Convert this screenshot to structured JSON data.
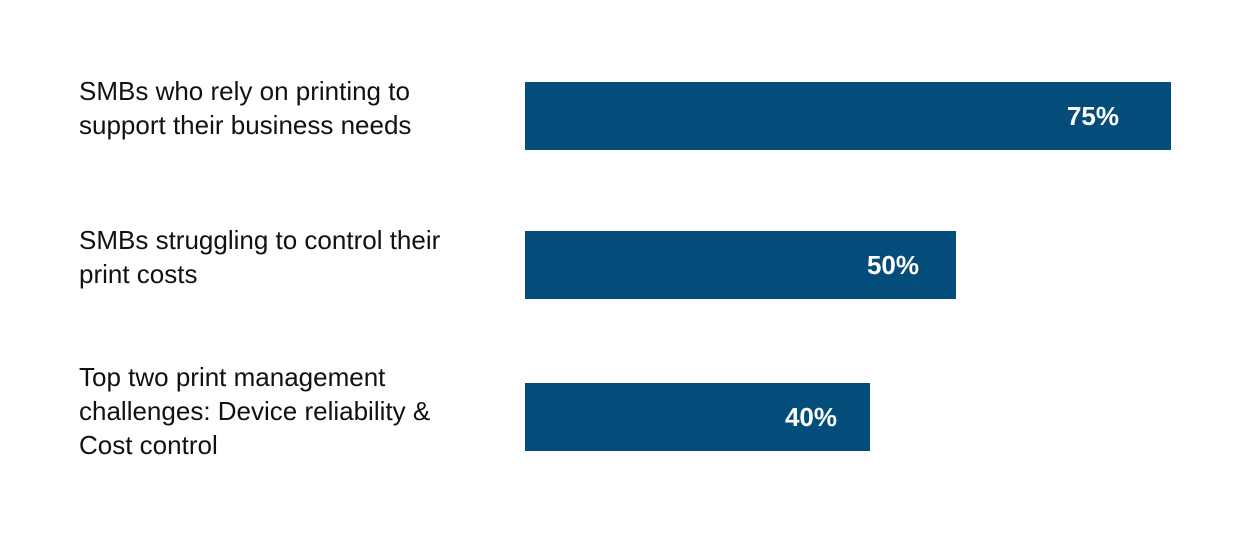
{
  "chart_data": {
    "type": "bar",
    "orientation": "horizontal",
    "title": "",
    "xlabel": "",
    "ylabel": "",
    "xlim": [
      0,
      75
    ],
    "grid": false,
    "bar_color": "#044d7a",
    "value_label_color": "#ffffff",
    "categories": [
      "SMBs who rely on printing to\nsupport their business needs",
      "SMBs struggling to control their\nprint costs",
      "Top two print management\nchallenges: Device reliability &\nCost control"
    ],
    "values": [
      75,
      50,
      40
    ],
    "value_labels": [
      "75%",
      "50%",
      "40%"
    ]
  }
}
